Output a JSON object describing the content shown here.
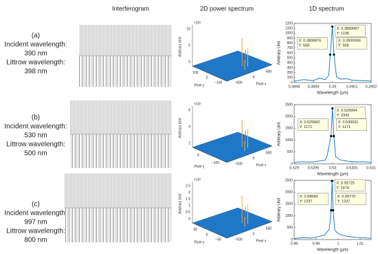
{
  "header": {
    "columns": [
      "Interferogram",
      "2D power spectrum",
      "1D spectrum"
    ]
  },
  "rows": [
    {
      "tag": "(a)",
      "lines": [
        "Incident wavelength:",
        "390 nm",
        "Littrow wavelength:",
        "398 nm"
      ]
    },
    {
      "tag": "(b)",
      "lines": [
        "Incident wavelength:",
        "530 nm",
        "Littrow wavelength:",
        "500 nm"
      ]
    },
    {
      "tag": "(c)",
      "lines": [
        "Incident wavelength:",
        "997 nm",
        "Littrow wavelength:",
        "800 nm"
      ]
    }
  ],
  "surfaces": [
    {
      "exponent": "×10⁵",
      "z_ticks": [
        "0",
        "5",
        "10"
      ],
      "y_ticks": [
        "100",
        "0",
        "−100"
      ],
      "x_ticks": [
        "−500",
        "0",
        "500"
      ],
      "z_label": "Arbitrary Unit",
      "y_label": "Pixel y",
      "x_label": "Pixel x"
    },
    {
      "exponent": "×10⁵",
      "z_ticks": [
        "2",
        "4",
        "6"
      ],
      "y_ticks": [
        "0",
        "−100"
      ],
      "x_ticks": [
        "−500",
        "0",
        "500"
      ],
      "z_label": "Arbitrary Unit",
      "y_label": "Pixel y",
      "x_label": "Pixel x"
    },
    {
      "exponent": "×10⁵",
      "z_ticks": [
        "0",
        "0.5",
        "1",
        "1.5",
        "2",
        "2.5"
      ],
      "y_ticks": [
        "50",
        "0",
        "−50"
      ],
      "x_ticks": [
        "−500",
        "0",
        "500"
      ],
      "z_label": "Arbitrary Unit",
      "y_label": "Pixel y",
      "x_label": "Pixel x"
    }
  ],
  "chart_data": [
    {
      "type": "line",
      "color": "#0072bd",
      "xlabel": "Wavelength (µm)",
      "ylabel": "Arbitrary Unit",
      "x": [
        0.3898,
        0.38985,
        0.3899,
        0.38993,
        0.38996,
        0.38998,
        0.3899876,
        0.3899987,
        0.3900069,
        0.39002,
        0.39004,
        0.39007,
        0.3901,
        0.39015,
        0.3902
      ],
      "values": [
        30,
        60,
        40,
        90,
        60,
        150,
        568,
        1136,
        568,
        120,
        70,
        80,
        50,
        40,
        30
      ],
      "xlim": [
        0.3898,
        0.3902
      ],
      "ylim": [
        0,
        1200
      ],
      "xticks": [
        0.3898,
        0.3899,
        0.39,
        0.3901,
        0.3902
      ],
      "yticks": [
        0,
        100,
        200,
        300,
        400,
        500,
        600,
        700,
        800,
        900,
        1000,
        1100,
        1200
      ],
      "datatips": [
        {
          "x": 0.3899987,
          "y": 1136,
          "text": [
            "X: 0.3899987",
            "Y: 1136"
          ]
        },
        {
          "x": 0.3899876,
          "y": 568,
          "text": [
            "X: 0.3899876",
            "Y: 568"
          ]
        },
        {
          "x": 0.3900069,
          "y": 568,
          "text": [
            "X: 0.3900069",
            "Y: 568"
          ]
        }
      ]
    },
    {
      "type": "line",
      "color": "#0072bd",
      "xlabel": "Wavelength (µm)",
      "ylabel": "Arbitrary Unit",
      "x": [
        0.529,
        0.5292,
        0.5294,
        0.5296,
        0.5298,
        0.52985,
        0.52996,
        0.529994,
        0.530031,
        0.53008,
        0.5302,
        0.5304,
        0.5306,
        0.5308,
        0.531
      ],
      "values": [
        60,
        90,
        70,
        110,
        150,
        300,
        1171,
        2342,
        1171,
        300,
        160,
        110,
        80,
        90,
        60
      ],
      "xlim": [
        0.529,
        0.531
      ],
      "ylim": [
        0,
        2500
      ],
      "xticks": [
        0.529,
        0.5295,
        0.53,
        0.5305,
        0.531
      ],
      "yticks": [
        0,
        500,
        1000,
        1500,
        2000,
        2500
      ],
      "datatips": [
        {
          "x": 0.529994,
          "y": 2342,
          "text": [
            "X: 0.529994",
            "Y: 2342"
          ]
        },
        {
          "x": 0.52996,
          "y": 1171,
          "text": [
            "X: 0.529960",
            "Y: 1171"
          ]
        },
        {
          "x": 0.530031,
          "y": 1171,
          "text": [
            "X: 0.530031",
            "Y: 1171"
          ]
        }
      ]
    },
    {
      "type": "line",
      "color": "#0072bd",
      "xlabel": "Wavelength (µm)",
      "ylabel": "Arbitrary Unit",
      "x": [
        0.98,
        0.984,
        0.988,
        0.991,
        0.994,
        0.996,
        0.99683,
        0.99725,
        0.9977,
        0.9985,
        1.001,
        1.004,
        1.008,
        1.012,
        1.015
      ],
      "values": [
        40,
        80,
        60,
        120,
        200,
        450,
        1237,
        2474,
        1237,
        380,
        200,
        140,
        90,
        70,
        50
      ],
      "xlim": [
        0.98,
        1.015
      ],
      "ylim": [
        0,
        2500
      ],
      "xticks": [
        0.98,
        0.99,
        1,
        1.01
      ],
      "yticks": [
        0,
        500,
        1000,
        1500,
        2000,
        2500
      ],
      "datatips": [
        {
          "x": 0.99725,
          "y": 2474,
          "text": [
            "X: 0.99725",
            "Y: 2474"
          ]
        },
        {
          "x": 0.99683,
          "y": 1237,
          "text": [
            "X: 0.99683",
            "Y: 1237"
          ]
        },
        {
          "x": 0.9977,
          "y": 1237,
          "text": [
            "X: 0.99770",
            "Y: 1237"
          ]
        }
      ]
    }
  ]
}
